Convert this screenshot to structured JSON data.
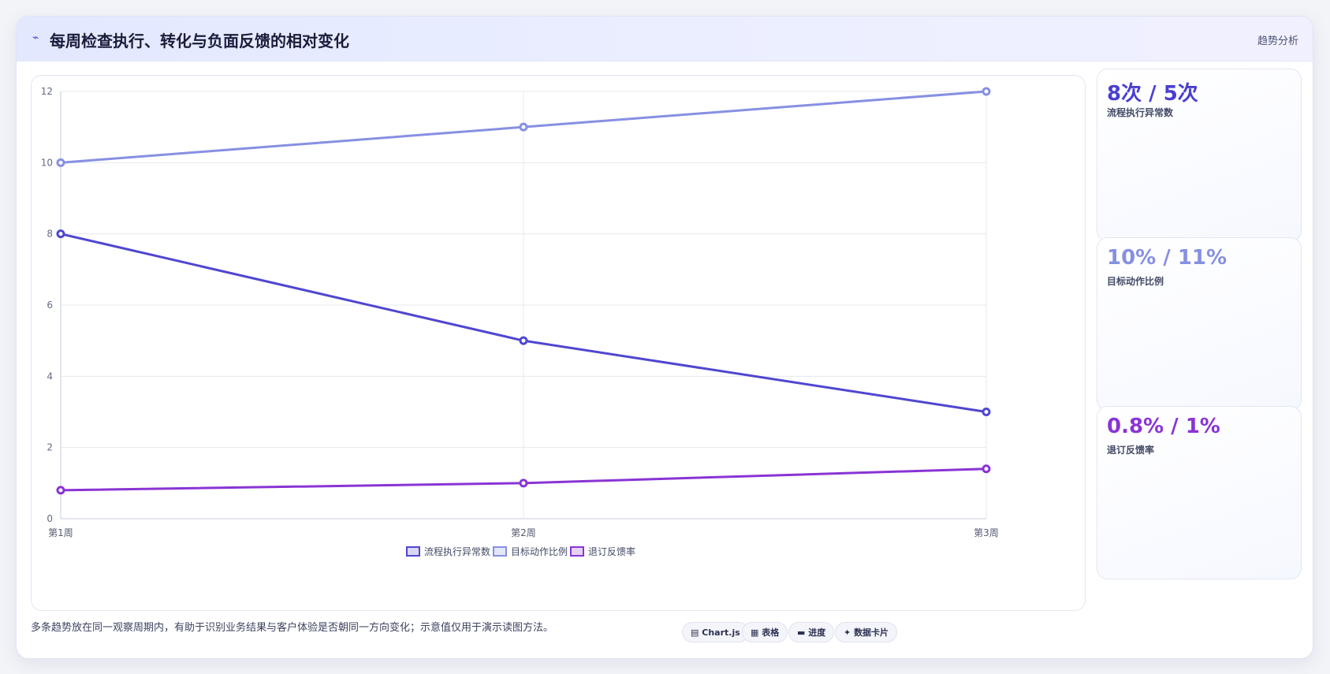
{
  "header": {
    "icon": "trend-icon",
    "icon_glyph": "⌁",
    "title": "每周检查执行、转化与负面反馈的相对变化",
    "tag": "趋势分析"
  },
  "chart_data": {
    "type": "line",
    "categories": [
      "第1周",
      "第2周",
      "第3周"
    ],
    "ylim": [
      0,
      12
    ],
    "yticks": [
      0,
      2,
      4,
      6,
      8,
      10,
      12
    ],
    "grid": true,
    "legend_placement": "bottom",
    "series": [
      {
        "name": "流程执行异常数",
        "values": [
          8,
          5,
          3
        ],
        "color": "#5046d0"
      },
      {
        "name": "目标动作比例",
        "values": [
          10,
          11,
          12
        ],
        "color": "#8690e2"
      },
      {
        "name": "退订反馈率",
        "values": [
          0.8,
          1,
          1.4
        ],
        "color": "#8a34d4"
      }
    ]
  },
  "cards": [
    {
      "value": "8次 / 5次",
      "label": "流程执行异常数",
      "color": "#4a3fd0"
    },
    {
      "value": "10% / 11%",
      "label": "目标动作比例",
      "color": "#8690e2"
    },
    {
      "value": "0.8% / 1%",
      "label": "退订反馈率",
      "color": "#8a34d4"
    }
  ],
  "footer": {
    "text": "多条趋势放在同一观察周期内，有助于识别业务结果与客户体验是否朝同一方向变化；示意值仅用于演示读图方法。",
    "pills": [
      {
        "icon": "chart-icon",
        "glyph": "▤",
        "label": "Chart.js"
      },
      {
        "icon": "table-icon",
        "glyph": "▦",
        "label": "表格"
      },
      {
        "icon": "progress-icon",
        "glyph": "▬",
        "label": "进度"
      },
      {
        "icon": "data-card-icon",
        "glyph": "✦",
        "label": "数据卡片"
      }
    ]
  }
}
